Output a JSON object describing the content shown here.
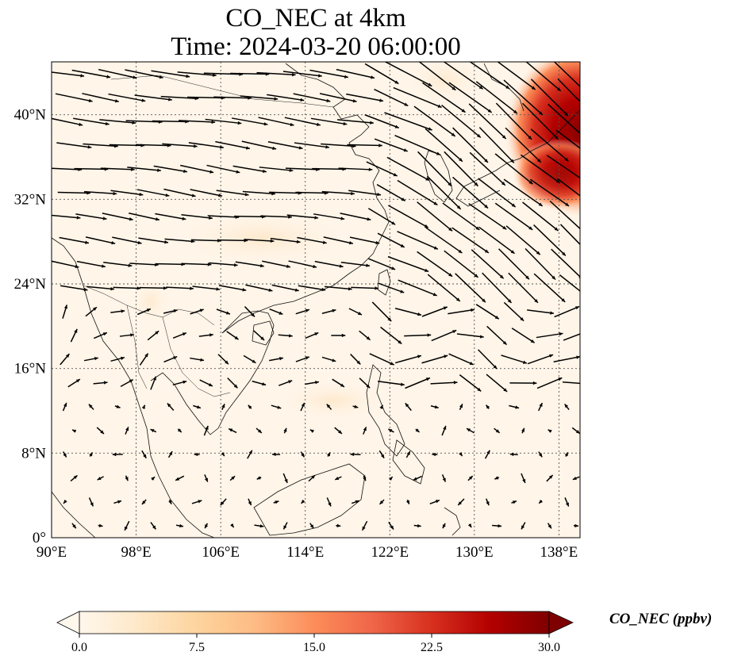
{
  "title": {
    "line1": "CO_NEC at 4km",
    "line2": "Time: 2024-03-20 06:00:00"
  },
  "map": {
    "extent_lon": [
      90,
      140
    ],
    "extent_lat": [
      0,
      45
    ],
    "lon_ticks": [
      "90°E",
      "98°E",
      "106°E",
      "114°E",
      "122°E",
      "130°E",
      "138°E"
    ],
    "lat_ticks": [
      "0°",
      "8°N",
      "16°N",
      "24°N",
      "32°N",
      "40°N"
    ],
    "gridlines": true,
    "field": "CO_NEC concentration, high (~20-30 ppbv) over northeast corner near Japan/Korea, low (~0-3 ppbv) elsewhere",
    "vectors": "wind arrows, westerly/northwesterly in north, weak and variable in south"
  },
  "colorbar": {
    "label": "CO_NEC (ppbv)",
    "ticks": [
      "0.0",
      "7.5",
      "15.0",
      "22.5",
      "30.0"
    ],
    "min": 0,
    "max": 30,
    "colormap": [
      "#fff7ec",
      "#fee8c8",
      "#fdd49e",
      "#fdbb84",
      "#fc8d59",
      "#ef6548",
      "#d7301f",
      "#b30000",
      "#7f0000"
    ],
    "extend": "both"
  }
}
